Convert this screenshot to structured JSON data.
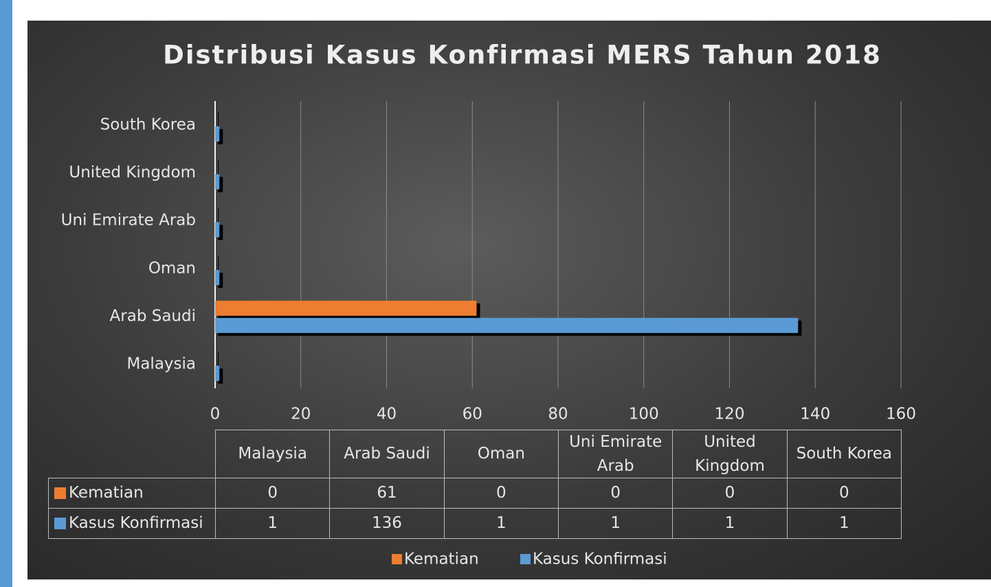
{
  "chart_data": {
    "type": "bar",
    "orientation": "horizontal",
    "title": "Distribusi Kasus Konfirmasi MERS Tahun 2018",
    "categories": [
      "Malaysia",
      "Arab Saudi",
      "Oman",
      "Uni Emirate Arab",
      "United Kingdom",
      "South Korea"
    ],
    "series": [
      {
        "name": "Kematian",
        "color": "#ed7d31",
        "values": [
          0,
          61,
          0,
          0,
          0,
          0
        ]
      },
      {
        "name": "Kasus Konfirmasi",
        "color": "#5b9bd5",
        "values": [
          1,
          136,
          1,
          1,
          1,
          1
        ]
      }
    ],
    "xlim": [
      0,
      160
    ],
    "xticks": [
      0,
      20,
      40,
      60,
      80,
      100,
      120,
      140,
      160
    ],
    "grid": true,
    "legend": "bottom",
    "data_table": true
  }
}
